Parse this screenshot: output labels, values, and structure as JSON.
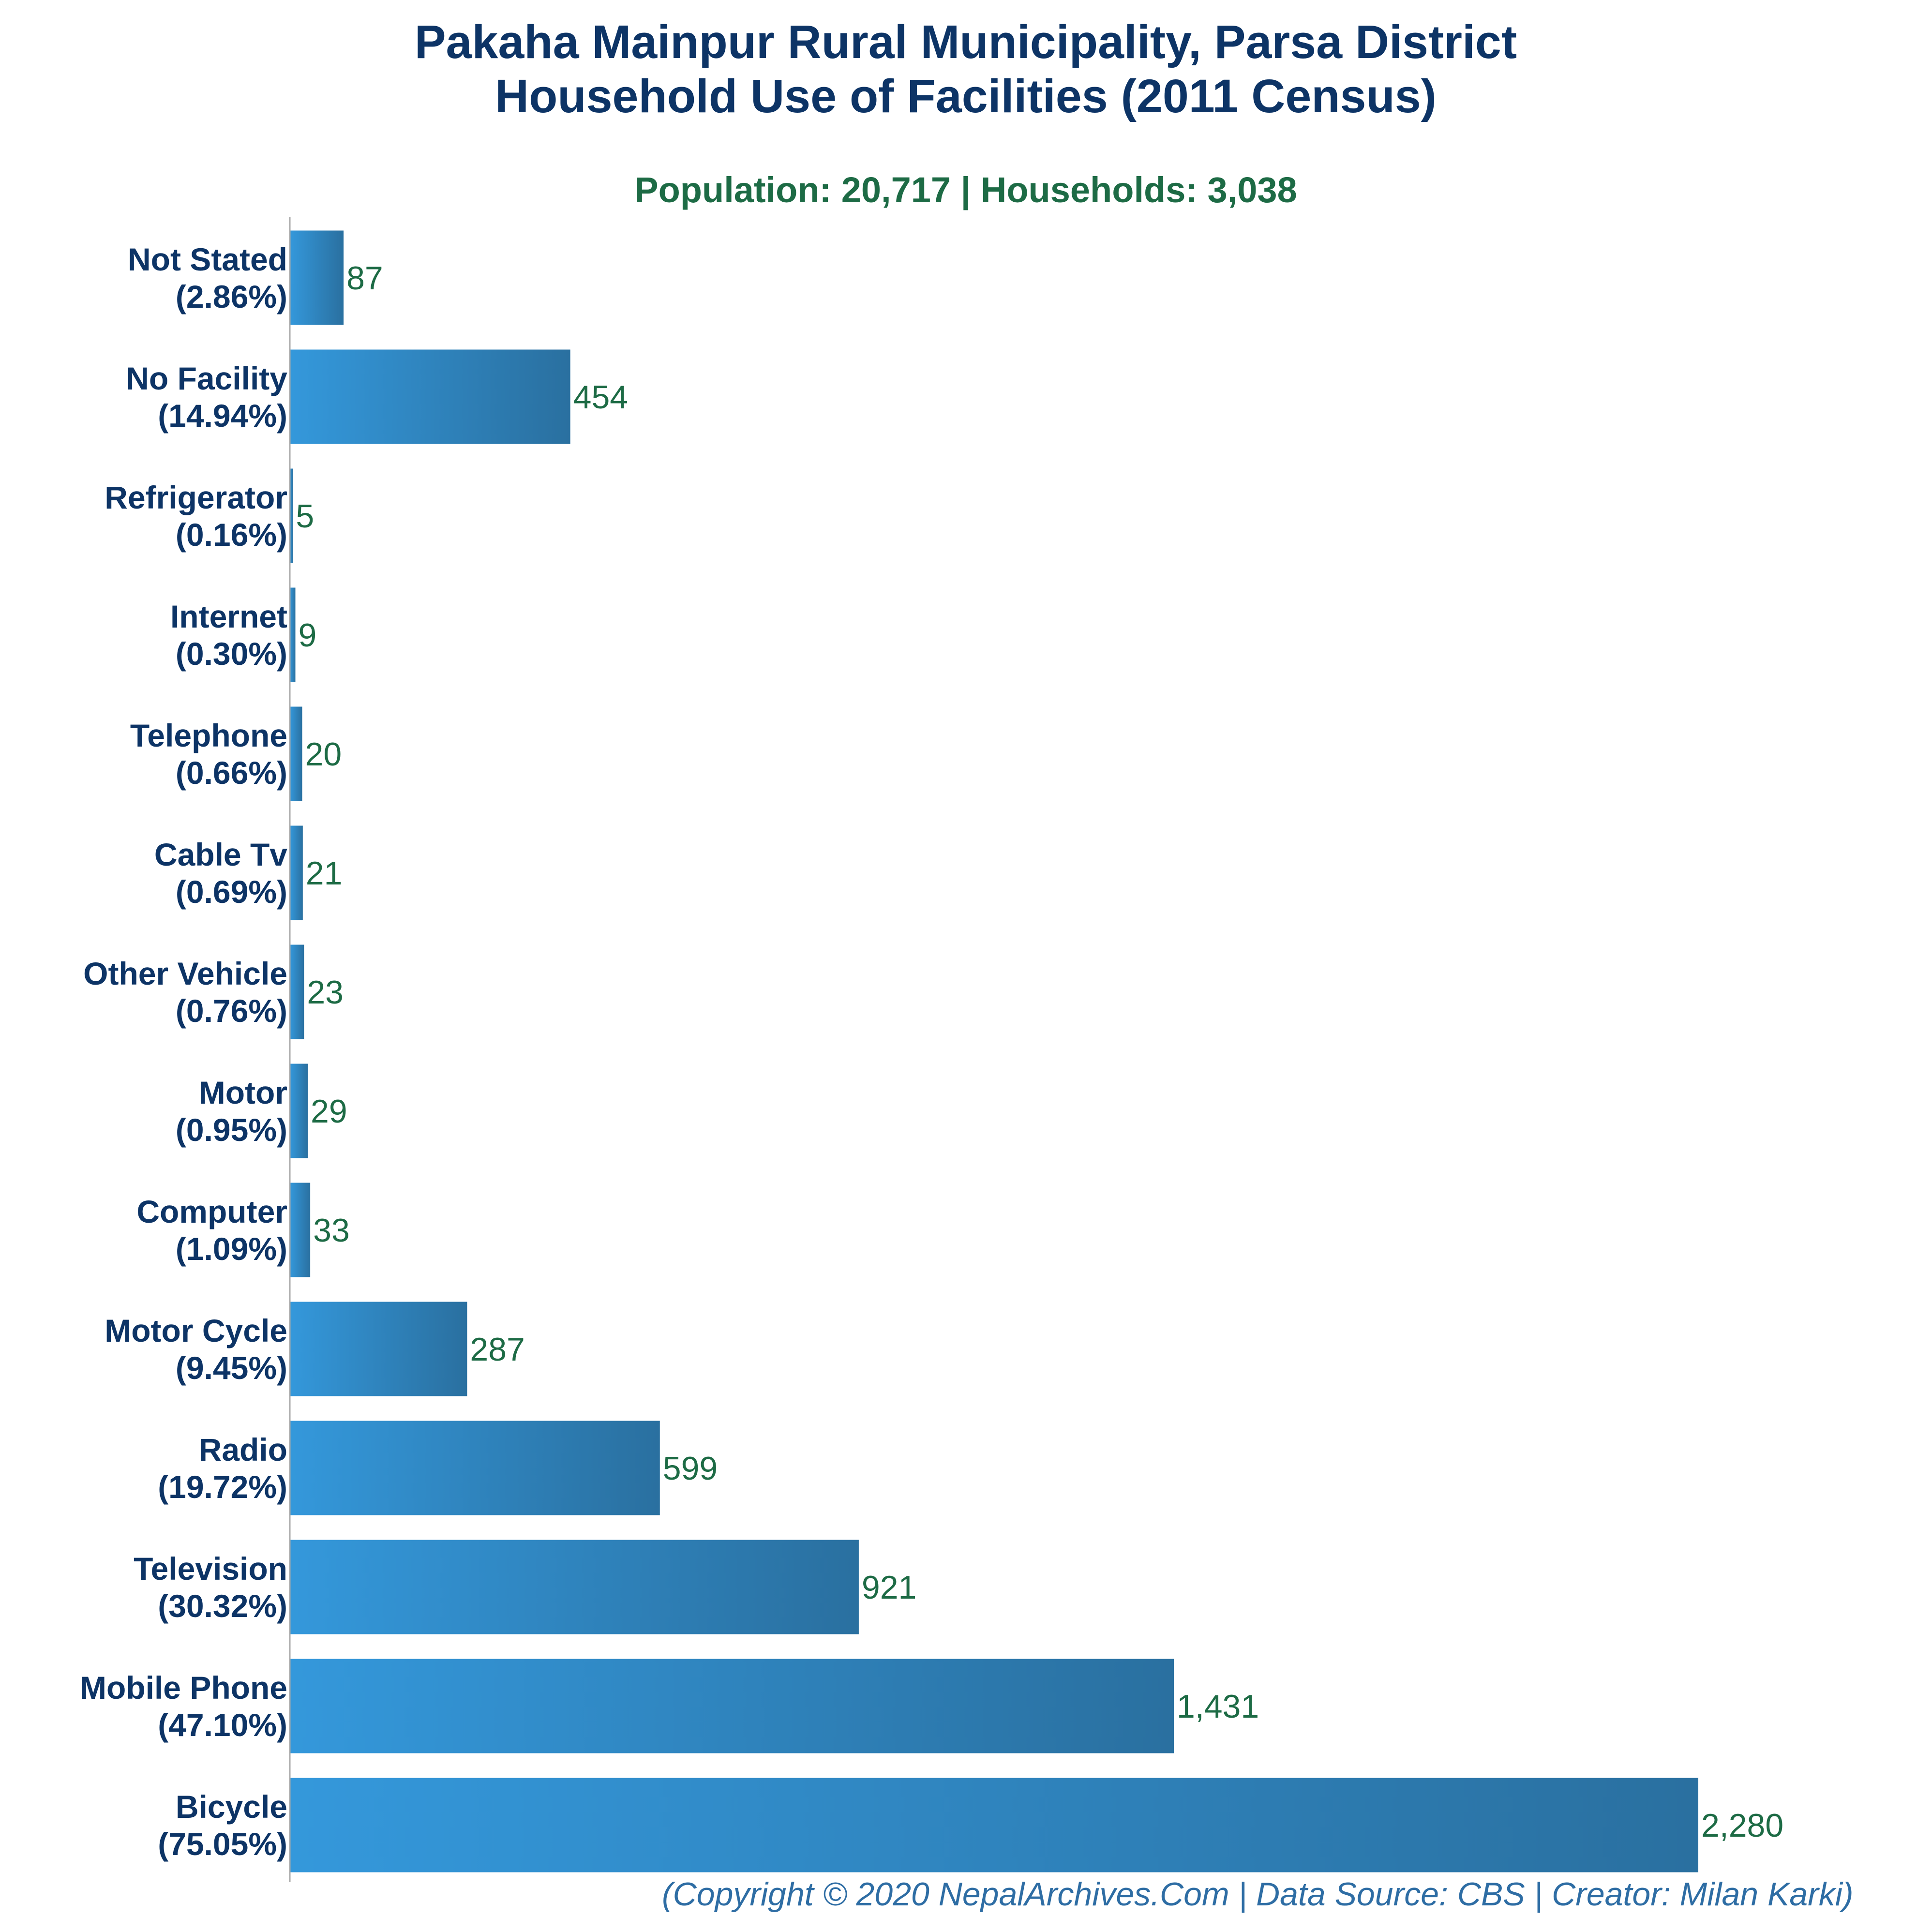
{
  "chart_data": {
    "type": "bar",
    "orientation": "horizontal",
    "title_lines": [
      "Pakaha Mainpur Rural Municipality, Parsa District",
      "Household Use of Facilities (2011 Census)"
    ],
    "subtitle": "Population: 20,717 | Households: 3,038",
    "categories": [
      "Not Stated",
      "No Facility",
      "Refrigerator",
      "Internet",
      "Telephone",
      "Cable Tv",
      "Other Vehicle",
      "Motor",
      "Computer",
      "Motor Cycle",
      "Radio",
      "Television",
      "Mobile Phone",
      "Bicycle"
    ],
    "percent_labels": [
      "(2.86%)",
      "(14.94%)",
      "(0.16%)",
      "(0.30%)",
      "(0.66%)",
      "(0.69%)",
      "(0.76%)",
      "(0.95%)",
      "(1.09%)",
      "(9.45%)",
      "(19.72%)",
      "(30.32%)",
      "(47.10%)",
      "(75.05%)"
    ],
    "values": [
      87,
      454,
      5,
      9,
      20,
      21,
      23,
      29,
      33,
      287,
      599,
      921,
      1431,
      2280
    ],
    "value_labels": [
      "87",
      "454",
      "5",
      "9",
      "20",
      "21",
      "23",
      "29",
      "33",
      "287",
      "599",
      "921",
      "1,431",
      "2,280"
    ],
    "xlim": [
      0,
      2280
    ],
    "grid": false,
    "legend": "none",
    "colors": {
      "bar_light": "#3498db",
      "bar_dark": "#2a70a0",
      "title": "#0d3466",
      "subtitle": "#1d6b45",
      "value_label": "#1d6b45",
      "footer": "#2e6da4"
    }
  },
  "footer": "(Copyright © 2020 NepalArchives.Com | Data Source: CBS | Creator: Milan Karki)"
}
